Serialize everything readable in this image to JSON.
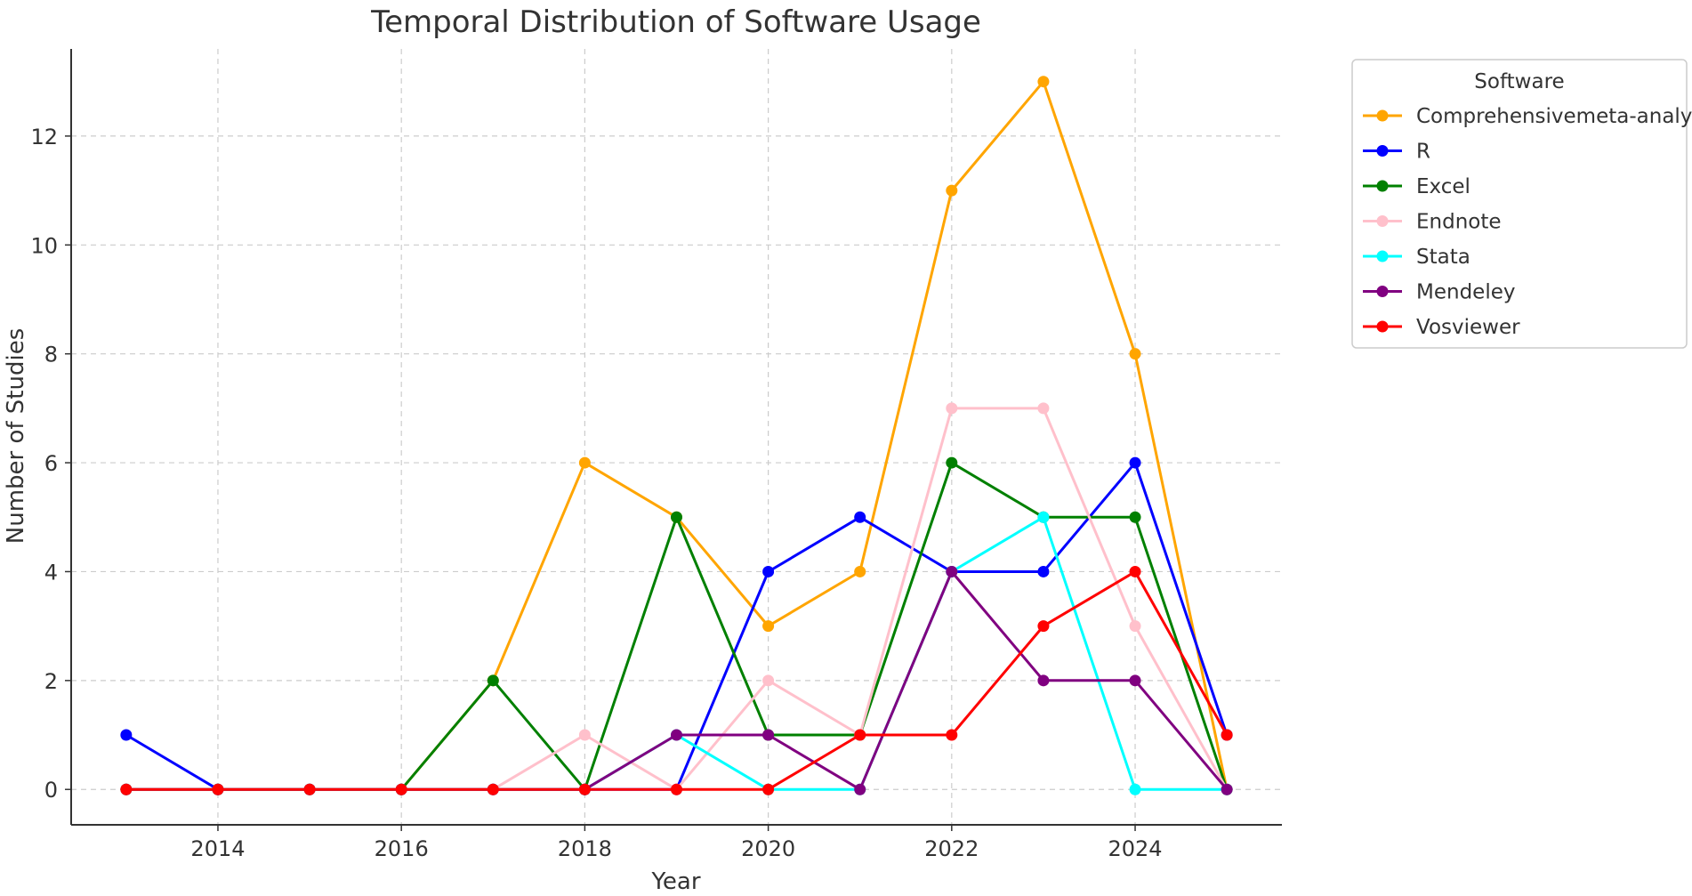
{
  "chart_data": {
    "type": "line",
    "title": "Temporal Distribution of Software Usage",
    "xlabel": "Year",
    "ylabel": "Number of Studies",
    "x": [
      2013,
      2014,
      2015,
      2016,
      2017,
      2018,
      2019,
      2020,
      2021,
      2022,
      2023,
      2024,
      2025
    ],
    "xlim": [
      2012.4,
      2025.6
    ],
    "ylim": [
      -0.65,
      13.6
    ],
    "xticks": [
      2014,
      2016,
      2018,
      2020,
      2022,
      2024
    ],
    "xtick_labels": [
      "2014",
      "2016",
      "2018",
      "2020",
      "2022",
      "2024"
    ],
    "yticks": [
      0,
      2,
      4,
      6,
      8,
      10,
      12
    ],
    "ytick_labels": [
      "0",
      "2",
      "4",
      "6",
      "8",
      "10",
      "12"
    ],
    "grid": true,
    "legend": {
      "title": "Software",
      "placement": "outside upper right"
    },
    "series": [
      {
        "name": "Comprehensivemeta-analysis",
        "color": "#FFA500",
        "values": [
          0,
          0,
          0,
          0,
          2,
          6,
          5,
          3,
          4,
          11,
          13,
          8,
          0
        ]
      },
      {
        "name": "R",
        "color": "#0000FF",
        "values": [
          1,
          0,
          0,
          0,
          0,
          0,
          0,
          4,
          5,
          4,
          4,
          6,
          1
        ]
      },
      {
        "name": "Excel",
        "color": "#008000",
        "values": [
          0,
          0,
          0,
          0,
          2,
          0,
          5,
          1,
          1,
          6,
          5,
          5,
          0
        ]
      },
      {
        "name": "Endnote",
        "color": "#FFC0CB",
        "values": [
          0,
          0,
          0,
          0,
          0,
          1,
          0,
          2,
          1,
          7,
          7,
          3,
          0
        ]
      },
      {
        "name": "Stata",
        "color": "#00FFFF",
        "values": [
          0,
          0,
          0,
          0,
          0,
          0,
          1,
          0,
          0,
          4,
          5,
          0,
          0
        ]
      },
      {
        "name": "Mendeley",
        "color": "#800080",
        "values": [
          0,
          0,
          0,
          0,
          0,
          0,
          1,
          1,
          0,
          4,
          2,
          2,
          0
        ]
      },
      {
        "name": "Vosviewer",
        "color": "#FF0000",
        "values": [
          0,
          0,
          0,
          0,
          0,
          0,
          0,
          0,
          1,
          1,
          3,
          4,
          1
        ]
      }
    ]
  }
}
